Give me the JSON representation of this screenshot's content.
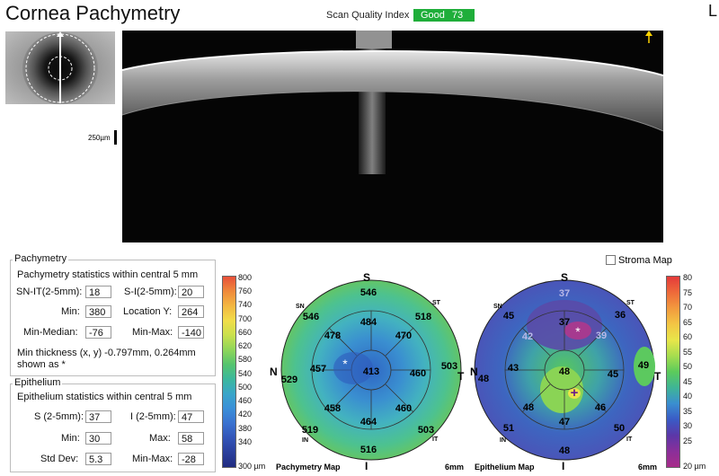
{
  "header": {
    "title": "Cornea Pachymetry",
    "scan_quality_label": "Scan Quality Index",
    "scan_quality_status": "Good",
    "scan_quality_value": "73",
    "eye": "L"
  },
  "scan": {
    "scale_label": "250µm"
  },
  "pachymetry": {
    "legend": "Pachymetry",
    "stats_title": "Pachymetry statistics within central 5 mm",
    "fields": [
      {
        "label": "SN-IT(2-5mm):",
        "value": "18"
      },
      {
        "label": "S-I(2-5mm):",
        "value": "20"
      },
      {
        "label": "Min:",
        "value": "380"
      },
      {
        "label": "Location Y:",
        "value": "264"
      },
      {
        "label": "Min-Median:",
        "value": "-76"
      },
      {
        "label": "Min-Max:",
        "value": "-140"
      }
    ],
    "min_note_1": "Min thickness (x, y) -0.797mm, 0.264mm",
    "min_note_2": "shown as *"
  },
  "epithelium": {
    "legend": "Epithelium",
    "stats_title": "Epithelium statistics within central 5 mm",
    "fields": [
      {
        "label": "S (2-5mm):",
        "value": "37"
      },
      {
        "label": "I (2-5mm):",
        "value": "47"
      },
      {
        "label": "Min:",
        "value": "30"
      },
      {
        "label": "Max:",
        "value": "58"
      },
      {
        "label": "Std Dev:",
        "value": "5.3"
      },
      {
        "label": "Min-Max:",
        "value": "-28"
      }
    ]
  },
  "stroma_map": {
    "label": "Stroma Map",
    "checked": false
  },
  "pachymetry_map": {
    "title": "Pachymetry Map",
    "size": "6mm",
    "orientation": {
      "S": "S",
      "I": "I",
      "N": "N",
      "T": "T",
      "SN": "SN",
      "ST": "ST",
      "IN": "IN",
      "IT": "IT"
    },
    "values": {
      "center": "413",
      "inner": [
        "484",
        "470",
        "460",
        "464",
        "458",
        "457",
        "478"
      ],
      "inner_ne_values": [],
      "outer": [
        "546",
        "518",
        "503",
        "503",
        "516",
        "519",
        "529",
        "546"
      ],
      "marker": "*"
    },
    "colorbar": {
      "ticks": [
        "800",
        "760",
        "740",
        "700",
        "660",
        "620",
        "580",
        "540",
        "500",
        "460",
        "420",
        "380",
        "340"
      ],
      "bottom": "300 µm",
      "colors": [
        "#e8503a",
        "#ef8a3c",
        "#f3b742",
        "#f1dd4a",
        "#c9e04d",
        "#8fd65a",
        "#55c46e",
        "#3bb89d",
        "#3aa6c9",
        "#3a8fd8",
        "#3a72d0",
        "#3355b8",
        "#2a3f9c",
        "#202b80"
      ]
    }
  },
  "epithelium_map": {
    "title": "Epithelium Map",
    "size": "6mm",
    "orientation": {
      "S": "S",
      "I": "I",
      "N": "N",
      "T": "T",
      "SN": "SN",
      "ST": "ST",
      "IN": "IN",
      "IT": "IT"
    },
    "values": {
      "center": "48",
      "c_light": [
        "37",
        "42",
        "39"
      ],
      "inner": [
        "37",
        "45",
        "46",
        "47",
        "48",
        "43"
      ],
      "outer": [
        "37",
        "36",
        "49",
        "50",
        "48",
        "51",
        "48",
        "45"
      ],
      "marker": "*",
      "plus": "+"
    },
    "colorbar": {
      "ticks": [
        "80",
        "75",
        "70",
        "65",
        "60",
        "55",
        "50",
        "45",
        "40",
        "35",
        "30",
        "25"
      ],
      "bottom": "20 µm",
      "colors": [
        "#e43a3a",
        "#ee6a3a",
        "#f29a3e",
        "#f3c644",
        "#e8e64a",
        "#a6dd4f",
        "#5ccb5b",
        "#3fb596",
        "#3a8ed0",
        "#3a5bc6",
        "#5b37a8",
        "#8a2f9a",
        "#a82c8a"
      ]
    }
  }
}
